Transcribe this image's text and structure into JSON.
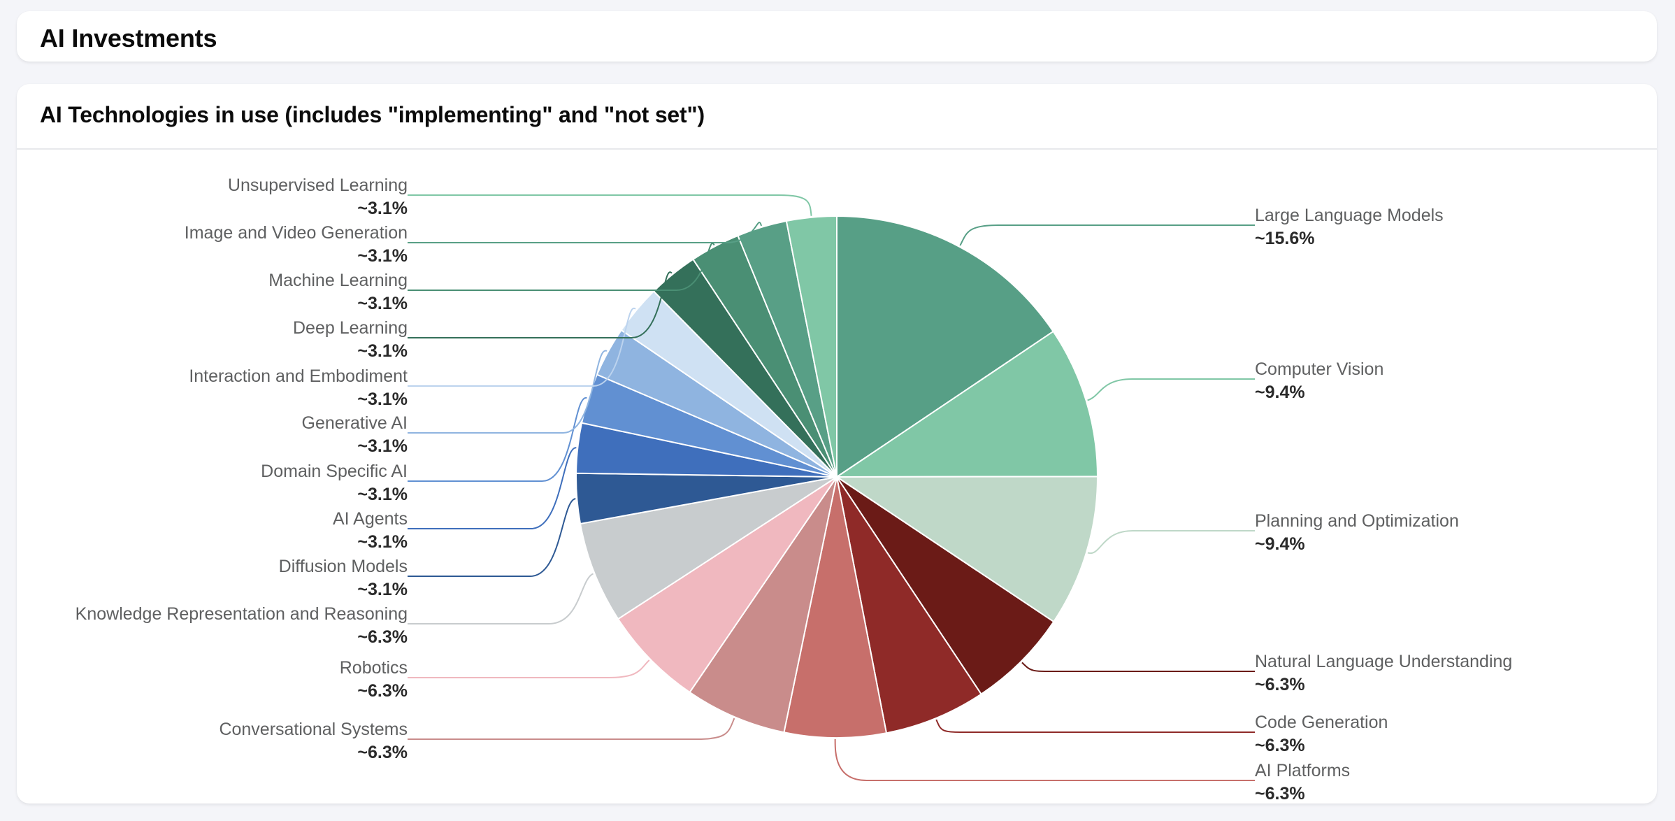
{
  "page": {
    "title": "AI Investments"
  },
  "chart_card": {
    "title": "AI Technologies in use (includes \"implementing\" and \"not set\")"
  },
  "chart_data": {
    "type": "pie",
    "title": "AI Technologies in use (includes \"implementing\" and \"not set\")",
    "start_angle": "12 o'clock, clockwise",
    "label_prefix": "~",
    "slices": [
      {
        "label": "Large Language Models",
        "value": 15.6,
        "display": "~15.6%",
        "color": "#579f86",
        "side": "right"
      },
      {
        "label": "Computer Vision",
        "value": 9.4,
        "display": "~9.4%",
        "color": "#80c7a6",
        "side": "right"
      },
      {
        "label": "Planning and Optimization",
        "value": 9.4,
        "display": "~9.4%",
        "color": "#bfd8c8",
        "side": "right"
      },
      {
        "label": "Natural Language Understanding",
        "value": 6.3,
        "display": "~6.3%",
        "color": "#6b1b17",
        "side": "right"
      },
      {
        "label": "Code Generation",
        "value": 6.3,
        "display": "~6.3%",
        "color": "#8f2a28",
        "side": "right"
      },
      {
        "label": "AI Platforms",
        "value": 6.3,
        "display": "~6.3%",
        "color": "#c76f6b",
        "side": "right"
      },
      {
        "label": "Conversational Systems",
        "value": 6.3,
        "display": "~6.3%",
        "color": "#c98c8b",
        "side": "left"
      },
      {
        "label": "Robotics",
        "value": 6.3,
        "display": "~6.3%",
        "color": "#f0b8bf",
        "side": "left"
      },
      {
        "label": "Knowledge Representation and Reasoning",
        "value": 6.3,
        "display": "~6.3%",
        "color": "#c8ccce",
        "side": "left"
      },
      {
        "label": "Diffusion Models",
        "value": 3.1,
        "display": "~3.1%",
        "color": "#2e5994",
        "side": "left"
      },
      {
        "label": "AI Agents",
        "value": 3.1,
        "display": "~3.1%",
        "color": "#3f6fbc",
        "side": "left"
      },
      {
        "label": "Domain Specific AI",
        "value": 3.1,
        "display": "~3.1%",
        "color": "#6190d2",
        "side": "left"
      },
      {
        "label": "Generative AI",
        "value": 3.1,
        "display": "~3.1%",
        "color": "#8fb4e0",
        "side": "left"
      },
      {
        "label": "Interaction and Embodiment",
        "value": 3.1,
        "display": "~3.1%",
        "color": "#cfe1f3",
        "side": "left"
      },
      {
        "label": "Deep Learning",
        "value": 3.1,
        "display": "~3.1%",
        "color": "#34705a",
        "side": "left"
      },
      {
        "label": "Machine Learning",
        "value": 3.1,
        "display": "~3.1%",
        "color": "#4a8f74",
        "side": "left"
      },
      {
        "label": "Image and Video Generation",
        "value": 3.1,
        "display": "~3.1%",
        "color": "#589f86",
        "side": "left"
      },
      {
        "label": "Unsupervised Learning",
        "value": 3.1,
        "display": "~3.1%",
        "color": "#80c7a6",
        "side": "left"
      }
    ],
    "legend": "none (leader-line labels)",
    "grid": false
  }
}
